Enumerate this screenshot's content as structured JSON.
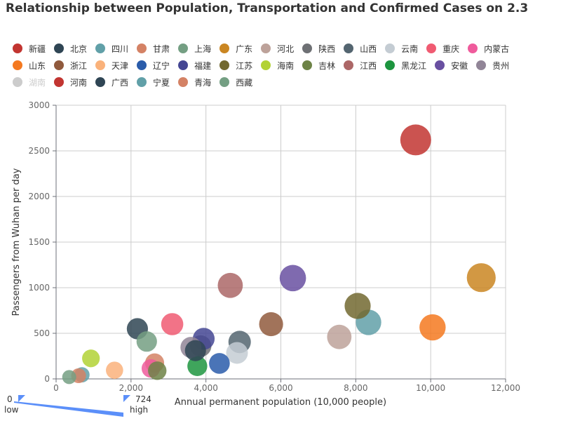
{
  "chart_data": {
    "type": "scatter",
    "title": "Relationship between Population, Transportation and Confirmed Cases on 2.3",
    "xlabel": "Annual permanent population (10,000 people)",
    "ylabel": "Passengers from Wuhan per day",
    "xlim": [
      0,
      12000
    ],
    "ylim": [
      0,
      3000
    ],
    "x_ticks": [
      "0",
      "2,000",
      "4,000",
      "6,000",
      "8,000",
      "10,000",
      "12,000"
    ],
    "y_ticks": [
      "0",
      "500",
      "1000",
      "1500",
      "2000",
      "2500",
      "3000"
    ],
    "grid": true,
    "legend_position": "top",
    "size_encoding": "confirmed cases",
    "visual_map": {
      "min": 0,
      "max": 724,
      "min_label": "0",
      "max_label": "724",
      "low_text": "low",
      "high_text": "high",
      "color": "#5b8ff9"
    },
    "series": [
      {
        "name": "新疆",
        "color": "#c23531",
        "points": []
      },
      {
        "name": "北京",
        "color": "#2f4554",
        "points": [
          [
            2170,
            550
          ]
        ]
      },
      {
        "name": "四川",
        "color": "#61a0a8",
        "points": [
          [
            8340,
            620
          ]
        ]
      },
      {
        "name": "甘肃",
        "color": "#d48265",
        "points": [
          [
            2630,
            175
          ]
        ]
      },
      {
        "name": "上海",
        "color": "#749f83",
        "points": [
          [
            2420,
            410
          ]
        ]
      },
      {
        "name": "广东",
        "color": "#ca8622",
        "points": [
          [
            11350,
            1110
          ]
        ]
      },
      {
        "name": "河北",
        "color": "#bda29a",
        "points": [
          [
            7560,
            460
          ]
        ]
      },
      {
        "name": "陕西",
        "color": "#6e7074",
        "points": [
          [
            3860,
            360
          ]
        ]
      },
      {
        "name": "山西",
        "color": "#546570",
        "points": [
          [
            4900,
            405
          ]
        ]
      },
      {
        "name": "云南",
        "color": "#c4ccd3",
        "points": [
          [
            4830,
            285
          ]
        ]
      },
      {
        "name": "重庆",
        "color": "#f05b72",
        "points": [
          [
            3100,
            600
          ]
        ]
      },
      {
        "name": "内蒙古",
        "color": "#ef5b9c",
        "points": [
          [
            2530,
            115
          ]
        ]
      },
      {
        "name": "山东",
        "color": "#f47920",
        "points": [
          [
            10050,
            565
          ]
        ]
      },
      {
        "name": "浙江",
        "color": "#905a3d",
        "points": [
          [
            5740,
            600
          ]
        ]
      },
      {
        "name": "天津",
        "color": "#fab27b",
        "points": [
          [
            1560,
            95
          ]
        ]
      },
      {
        "name": "辽宁",
        "color": "#2a5caa",
        "points": [
          [
            4360,
            170
          ]
        ]
      },
      {
        "name": "福建",
        "color": "#444693",
        "points": [
          [
            3940,
            440
          ]
        ]
      },
      {
        "name": "江苏",
        "color": "#726930",
        "points": [
          [
            8050,
            800
          ]
        ]
      },
      {
        "name": "海南",
        "color": "#b2d235",
        "points": [
          [
            930,
            225
          ]
        ]
      },
      {
        "name": "吉林",
        "color": "#6d8346",
        "points": [
          [
            2700,
            90
          ]
        ]
      },
      {
        "name": "江西",
        "color": "#ac6767",
        "points": [
          [
            4650,
            1025
          ]
        ]
      },
      {
        "name": "黑龙江",
        "color": "#1d953f",
        "points": [
          [
            3770,
            140
          ]
        ]
      },
      {
        "name": "安徽",
        "color": "#6950a1",
        "points": [
          [
            6320,
            1105
          ]
        ]
      },
      {
        "name": "贵州",
        "color": "#918597",
        "points": [
          [
            3600,
            345
          ]
        ]
      },
      {
        "name": "湖南",
        "color": "#cccccc",
        "hidden": true,
        "points": []
      },
      {
        "name": "河南",
        "color": "#c23531",
        "points": [
          [
            9600,
            2620
          ]
        ]
      },
      {
        "name": "广西",
        "color": "#2f4554",
        "points": [
          [
            3720,
            310
          ]
        ]
      },
      {
        "name": "宁夏",
        "color": "#61a0a8",
        "points": [
          [
            690,
            45
          ]
        ]
      },
      {
        "name": "青海",
        "color": "#d48265",
        "points": [
          [
            600,
            35
          ]
        ]
      },
      {
        "name": "西藏",
        "color": "#749f83",
        "points": [
          [
            350,
            20
          ]
        ]
      }
    ]
  }
}
